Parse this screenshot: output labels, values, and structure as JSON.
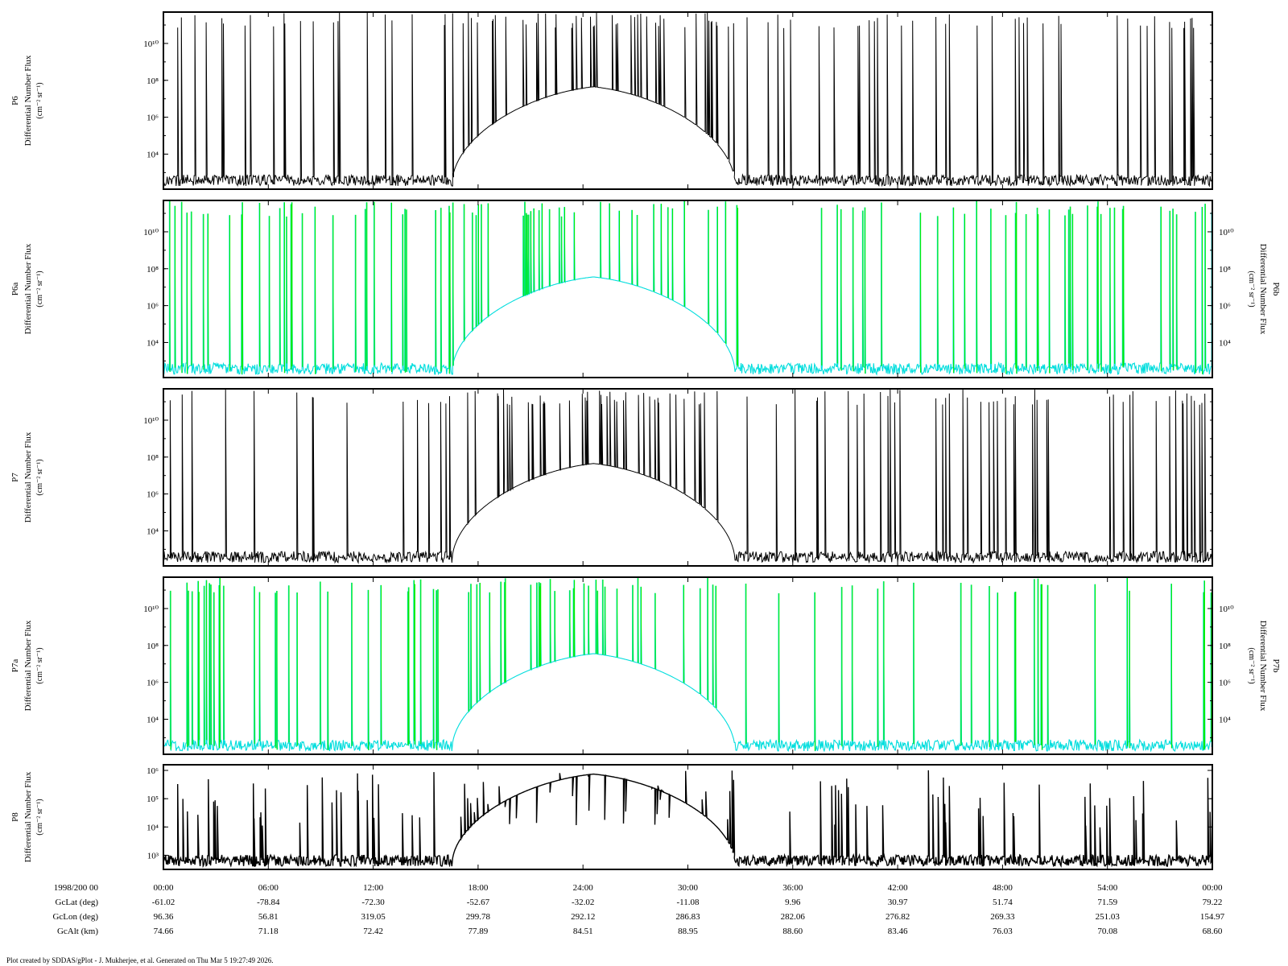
{
  "chart_data": [
    {
      "type": "line",
      "id": "p6",
      "trace": "black",
      "band": {
        "center": 0.41,
        "halfwidth": 0.135,
        "peak": 0.56
      },
      "left_label": {
        "name": "P6",
        "title": "Differential Number Flux",
        "units": "(cm⁻² sr⁻¹)"
      },
      "right_label": null,
      "y_ticks": [
        {
          "label": "10¹⁰",
          "value": 10
        },
        {
          "label": "10⁸",
          "value": 8
        },
        {
          "label": "10⁶",
          "value": 6
        },
        {
          "label": "10⁴",
          "value": 4
        }
      ],
      "y_log_range": [
        2.1,
        11.7
      ],
      "right_ticks": false
    },
    {
      "type": "line",
      "id": "p6ab",
      "trace": "green-cyan",
      "band": {
        "center": 0.41,
        "halfwidth": 0.135,
        "peak": 0.55
      },
      "left_label": {
        "name": "P6a",
        "title": "Differential Number Flux",
        "units": "(cm⁻² sr⁻¹)"
      },
      "right_label": {
        "name": "P6b",
        "title": "Differential Number Flux",
        "units": "(cm⁻² sr⁻¹)"
      },
      "y_ticks": [
        {
          "label": "10¹⁰",
          "value": 10
        },
        {
          "label": "10⁸",
          "value": 8
        },
        {
          "label": "10⁶",
          "value": 6
        },
        {
          "label": "10⁴",
          "value": 4
        }
      ],
      "y_log_range": [
        2.1,
        11.7
      ],
      "right_ticks": true
    },
    {
      "type": "line",
      "id": "p7",
      "trace": "black",
      "band": {
        "center": 0.41,
        "halfwidth": 0.135,
        "peak": 0.56
      },
      "left_label": {
        "name": "P7",
        "title": "Differential Number Flux",
        "units": "(cm⁻² sr⁻¹)"
      },
      "right_label": null,
      "y_ticks": [
        {
          "label": "10¹⁰",
          "value": 10
        },
        {
          "label": "10⁸",
          "value": 8
        },
        {
          "label": "10⁶",
          "value": 6
        },
        {
          "label": "10⁴",
          "value": 4
        }
      ],
      "y_log_range": [
        2.1,
        11.7
      ],
      "right_ticks": false
    },
    {
      "type": "line",
      "id": "p7ab",
      "trace": "green-cyan",
      "band": {
        "center": 0.41,
        "halfwidth": 0.135,
        "peak": 0.55
      },
      "left_label": {
        "name": "P7a",
        "title": "Differential Number Flux",
        "units": "(cm⁻² sr⁻¹)"
      },
      "right_label": {
        "name": "P7b",
        "title": "Differential Number Flux",
        "units": "(cm⁻² sr⁻¹)"
      },
      "y_ticks": [
        {
          "label": "10¹⁰",
          "value": 10
        },
        {
          "label": "10⁸",
          "value": 8
        },
        {
          "label": "10⁶",
          "value": 6
        },
        {
          "label": "10⁴",
          "value": 4
        }
      ],
      "y_log_range": [
        2.1,
        11.7
      ],
      "right_ticks": true
    },
    {
      "type": "line",
      "id": "p8",
      "trace": "black-bold",
      "band": {
        "center": 0.41,
        "halfwidth": 0.135,
        "peak": 0.88
      },
      "left_label": {
        "name": "P8",
        "title": "Differential Number Flux",
        "units": "(cm⁻² sr⁻¹)"
      },
      "right_label": null,
      "y_ticks": [
        {
          "label": "10⁶",
          "value": 6
        },
        {
          "label": "10⁵",
          "value": 5
        },
        {
          "label": "10⁴",
          "value": 4
        },
        {
          "label": "10³",
          "value": 3
        }
      ],
      "y_log_range": [
        2.5,
        6.2
      ],
      "right_ticks": true
    }
  ],
  "x_axis": {
    "date_label": "1998/200 00",
    "ticks": [
      "00:00",
      "06:00",
      "12:00",
      "18:00",
      "24:00",
      "30:00",
      "36:00",
      "42:00",
      "48:00",
      "54:00",
      "00:00"
    ]
  },
  "ephemeris": [
    {
      "label": "GcLat (deg)",
      "values": [
        "-61.02",
        "-78.84",
        "-72.30",
        "-52.67",
        "-32.02",
        "-11.08",
        "9.96",
        "30.97",
        "51.74",
        "71.59",
        "79.22"
      ]
    },
    {
      "label": "GcLon (deg)",
      "values": [
        "96.36",
        "56.81",
        "319.05",
        "299.78",
        "292.12",
        "286.83",
        "282.06",
        "276.82",
        "269.33",
        "251.03",
        "154.97"
      ]
    },
    {
      "label": "GcAlt (km)",
      "values": [
        "74.66",
        "71.18",
        "72.42",
        "77.89",
        "84.51",
        "88.95",
        "88.60",
        "83.46",
        "76.03",
        "70.08",
        "68.60"
      ]
    }
  ],
  "credit": "Plot created by SDDAS/gPlot - J. Mukherjee, et al.  Generated on Thu Mar 5 19:27:49 2026.",
  "colors": {
    "trace": "#000000",
    "green": "#00ee00",
    "cyan": "#00dddd",
    "axes": "#000000"
  }
}
